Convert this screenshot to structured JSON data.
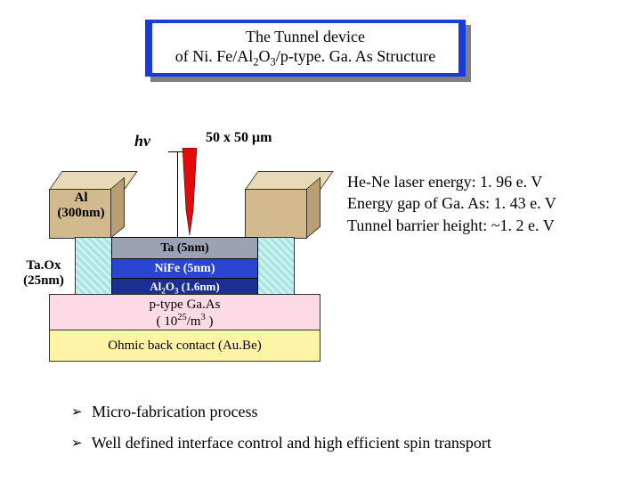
{
  "title": {
    "line1": "The Tunnel device",
    "line2_html": "of Ni. Fe/Al<sub>2</sub>O<sub>3</sub>/p-type. Ga. As Structure"
  },
  "diagram": {
    "hv_label": "hv",
    "dimension_label_html": "50 x 50 &mu;m",
    "al_label": "Al",
    "al_thickness": "(300nm)",
    "taox_label": "Ta.Ox",
    "taox_thickness": "(25nm)",
    "layers": {
      "ta": "Ta  (5nm)",
      "nife": "NiFe  (5nm)",
      "al2o3_html": "Al<sub>2</sub>O<sub>3</sub>  (1.6nm)",
      "gaas_line1": "p-type  Ga.As",
      "gaas_line2_html": "( 10<sup>25</sup>/m<sup>3</sup> )",
      "ohmic": "Ohmic back contact  (Au.Be)"
    },
    "colors": {
      "al_front": "#d2b98e",
      "al_top": "#e8d9b8",
      "al_side": "#b89f73",
      "taox": "#a8e4e2",
      "ta": "#9aa2b3",
      "nife": "#2a46d0",
      "al2o3": "#1b2e91",
      "gaas": "#fddbe6",
      "ohmic": "#fff3a6",
      "title_fill": "#1a3cd6",
      "laser_red": "#e20a0a"
    }
  },
  "notes": {
    "line1": "He-Ne laser energy: 1. 96 e. V",
    "line2": "Energy gap of Ga. As: 1. 43 e. V",
    "line3": "Tunnel barrier height: ~1. 2 e. V"
  },
  "bullets": {
    "b1": "Micro-fabrication process",
    "b2": "Well defined interface control and high efficient spin transport"
  },
  "chevron": "➢"
}
